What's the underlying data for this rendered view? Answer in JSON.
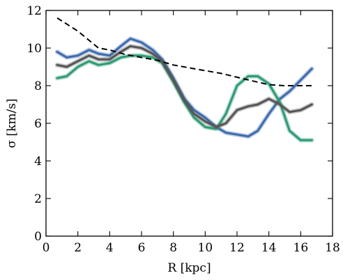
{
  "chart_data": {
    "type": "line",
    "xlabel": "R [kpc]",
    "ylabel": "σ [km/s]",
    "xlim": [
      0,
      18
    ],
    "ylim": [
      0,
      12
    ],
    "xticks": [
      0,
      2,
      4,
      6,
      8,
      10,
      12,
      14,
      16,
      18
    ],
    "yticks": [
      0,
      2,
      4,
      6,
      8,
      10,
      12
    ],
    "grid": false,
    "colors": {
      "blue": "#3d6aad",
      "green": "#2e9a73",
      "gray": "#555555",
      "dashed": "#000000"
    },
    "series": [
      {
        "style": "blue",
        "x": [
          0.7,
          1.3,
          2.0,
          2.7,
          3.3,
          4.0,
          4.7,
          5.3,
          6.0,
          6.7,
          7.3,
          8.0,
          8.7,
          9.3,
          10.0,
          10.7,
          11.3,
          12.0,
          12.7,
          13.3,
          14.0,
          14.7,
          15.3,
          16.0,
          16.7
        ],
        "y": [
          9.8,
          9.5,
          9.6,
          9.9,
          9.7,
          9.6,
          10.1,
          10.5,
          10.3,
          9.9,
          9.4,
          8.4,
          7.3,
          6.7,
          6.3,
          5.8,
          5.5,
          5.4,
          5.3,
          5.6,
          6.5,
          7.3,
          7.7,
          8.3,
          8.9
        ]
      },
      {
        "style": "green",
        "x": [
          0.7,
          1.3,
          2.0,
          2.7,
          3.3,
          4.0,
          4.7,
          5.3,
          6.0,
          6.7,
          7.3,
          8.0,
          8.7,
          9.3,
          10.0,
          10.7,
          11.3,
          12.0,
          12.7,
          13.3,
          14.0,
          14.7,
          15.3,
          16.0,
          16.7
        ],
        "y": [
          8.4,
          8.5,
          9.0,
          9.3,
          9.1,
          9.2,
          9.5,
          9.6,
          9.6,
          9.5,
          9.2,
          8.2,
          7.1,
          6.3,
          5.8,
          5.7,
          6.5,
          8.0,
          8.5,
          8.5,
          8.1,
          7.1,
          5.6,
          5.1,
          5.1
        ]
      },
      {
        "style": "gray",
        "x": [
          0.7,
          1.3,
          2.0,
          2.7,
          3.3,
          4.0,
          4.7,
          5.3,
          6.0,
          6.7,
          7.3,
          8.0,
          8.7,
          9.3,
          10.0,
          10.7,
          11.3,
          12.0,
          12.7,
          13.3,
          14.0,
          14.7,
          15.3,
          16.0,
          16.7
        ],
        "y": [
          9.1,
          9.0,
          9.3,
          9.6,
          9.4,
          9.4,
          9.8,
          10.1,
          10.0,
          9.7,
          9.3,
          8.3,
          7.2,
          6.5,
          6.1,
          5.8,
          6.0,
          6.7,
          6.9,
          7.0,
          7.3,
          7.0,
          6.6,
          6.7,
          7.0
        ]
      },
      {
        "style": "dashed",
        "x": [
          0.7,
          2.0,
          3.3,
          4.0,
          5.0,
          6.0,
          7.0,
          8.0,
          9.0,
          10.0,
          11.0,
          12.0,
          13.0,
          14.0,
          15.0,
          16.0,
          16.7
        ],
        "y": [
          11.6,
          10.9,
          10.0,
          9.9,
          9.65,
          9.5,
          9.35,
          9.1,
          8.95,
          8.8,
          8.65,
          8.45,
          8.25,
          8.05,
          8.0,
          8.0,
          8.0
        ]
      }
    ]
  }
}
